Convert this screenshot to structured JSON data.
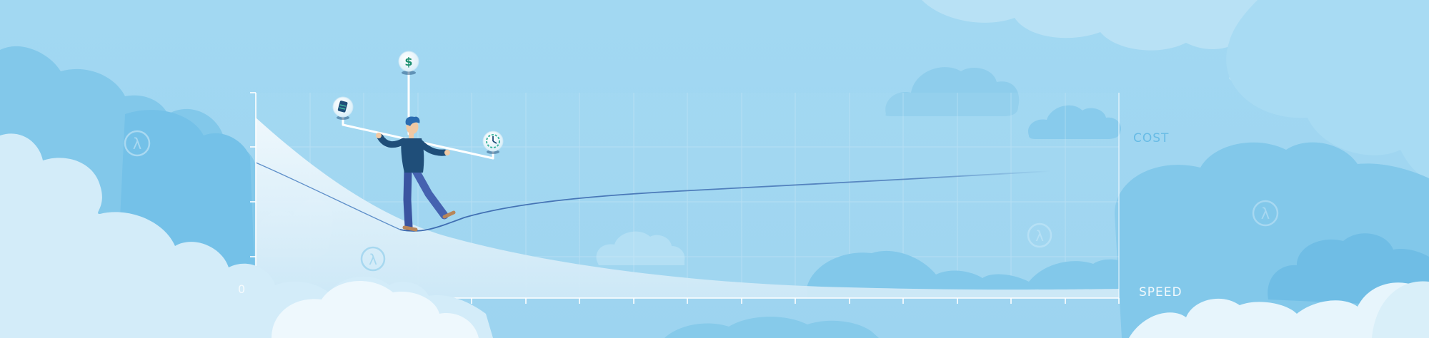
{
  "axis_labels": {
    "y_axis": "COST",
    "x_axis": "SPEED",
    "origin": "0"
  },
  "icons": {
    "top_pole": "dollar-coin-icon",
    "left_pole": "server-icon",
    "right_pole": "clock-icon",
    "background_badge": "lambda-icon"
  },
  "icon_glyphs": {
    "dollar": "$",
    "lambda": "λ"
  },
  "colors": {
    "sky": "#9fd6f1",
    "cloud_light": "#d6edf9",
    "cloud_mid": "#7fc6ea",
    "curve_cost": "#3d6bb0",
    "figure_shirt": "#1f4e79",
    "figure_pants": "#3f5aa6",
    "coin_green": "#1b8f6f"
  }
}
